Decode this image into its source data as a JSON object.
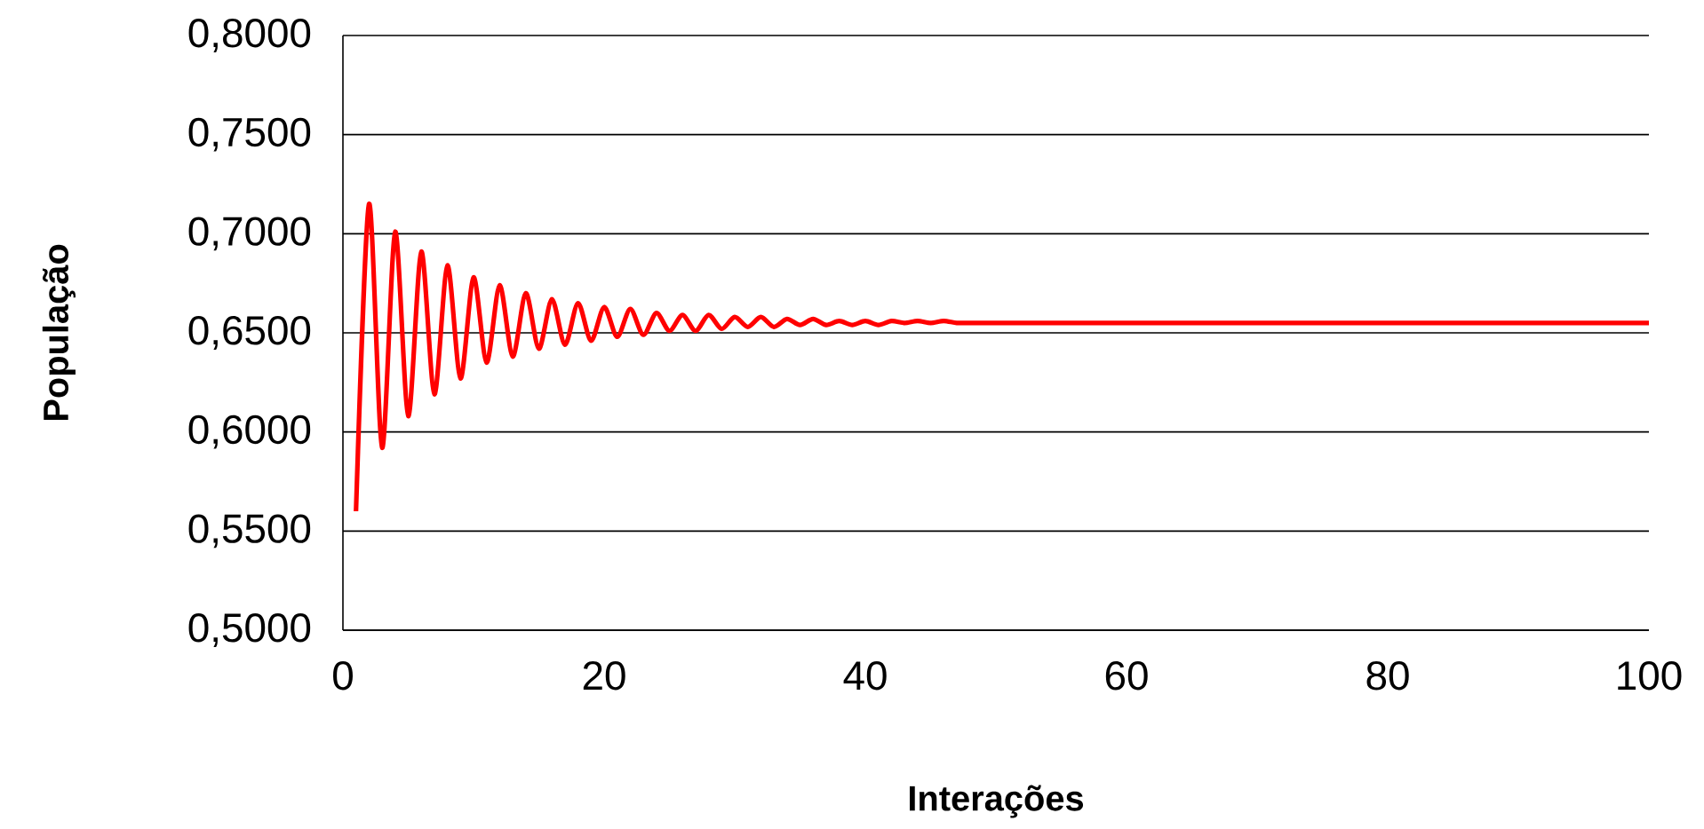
{
  "chart_data": {
    "type": "line",
    "xlabel": "Interações",
    "ylabel": "População",
    "x": [
      1,
      2,
      3,
      4,
      5,
      6,
      7,
      8,
      9,
      10,
      11,
      12,
      13,
      14,
      15,
      16,
      17,
      18,
      19,
      20,
      21,
      22,
      23,
      24,
      25,
      26,
      27,
      28,
      29,
      30,
      31,
      32,
      33,
      34,
      35,
      36,
      37,
      38,
      39,
      40,
      41,
      42,
      43,
      44,
      45,
      46,
      47,
      48,
      49,
      50,
      60,
      70,
      80,
      90,
      100
    ],
    "series": [
      {
        "color": "#ff0000",
        "values": [
          0.56,
          0.715,
          0.592,
          0.701,
          0.608,
          0.691,
          0.619,
          0.684,
          0.627,
          0.678,
          0.635,
          0.674,
          0.638,
          0.67,
          0.642,
          0.667,
          0.644,
          0.665,
          0.646,
          0.663,
          0.648,
          0.662,
          0.649,
          0.66,
          0.651,
          0.659,
          0.651,
          0.659,
          0.652,
          0.658,
          0.653,
          0.658,
          0.653,
          0.657,
          0.654,
          0.657,
          0.654,
          0.656,
          0.654,
          0.656,
          0.654,
          0.656,
          0.655,
          0.656,
          0.655,
          0.656,
          0.655,
          0.655,
          0.655,
          0.655,
          0.655,
          0.655,
          0.655,
          0.655,
          0.655
        ]
      }
    ],
    "xlim": [
      0,
      100
    ],
    "xticks": [
      0,
      20,
      40,
      60,
      80,
      100
    ],
    "ylim": [
      0.5,
      0.8
    ],
    "yticks": [
      {
        "value": 0.5,
        "label": "0,5000"
      },
      {
        "value": 0.55,
        "label": "0,5500"
      },
      {
        "value": 0.6,
        "label": "0,6000"
      },
      {
        "value": 0.65,
        "label": "0,6500"
      },
      {
        "value": 0.7,
        "label": "0,7000"
      },
      {
        "value": 0.75,
        "label": "0,7500"
      },
      {
        "value": 0.8,
        "label": "0,8000"
      }
    ],
    "grid": "y",
    "marker": "none",
    "line_style": "solid"
  }
}
